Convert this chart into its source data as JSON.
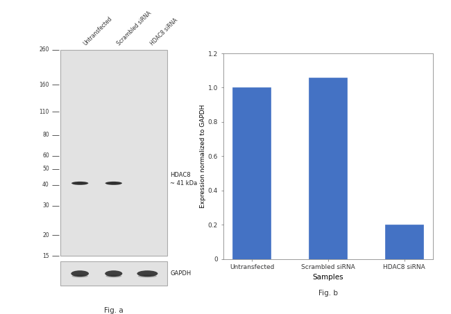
{
  "fig_width": 6.5,
  "fig_height": 4.53,
  "dpi": 100,
  "bar_categories": [
    "Untransfected",
    "Scrambled siRNA",
    "HDAC8 siRNA"
  ],
  "bar_values": [
    1.0,
    1.06,
    0.2
  ],
  "bar_color": "#4472C4",
  "ylabel": "Expression normalized to GAPDH",
  "xlabel": "Samples",
  "ylim": [
    0,
    1.2
  ],
  "yticks": [
    0,
    0.2,
    0.4,
    0.6,
    0.8,
    1.0,
    1.2
  ],
  "fig_a_label": "Fig. a",
  "fig_b_label": "Fig. b",
  "wb_background": "#e2e2e2",
  "wb_band_color": "#1a1a1a",
  "gapdh_band_color": "#222222",
  "mw_markers": [
    260,
    160,
    110,
    80,
    60,
    50,
    40,
    30,
    20,
    15
  ],
  "hdac8_label": "HDAC8\n~ 41 kDa",
  "gapdh_label": "GAPDH",
  "lane_labels": [
    "Untransfected",
    "Scrambled siRNA",
    "HDAC8 siRNA"
  ],
  "hdac8_lanes": [
    0,
    1
  ],
  "gapdh_lanes": [
    0,
    1,
    2
  ]
}
